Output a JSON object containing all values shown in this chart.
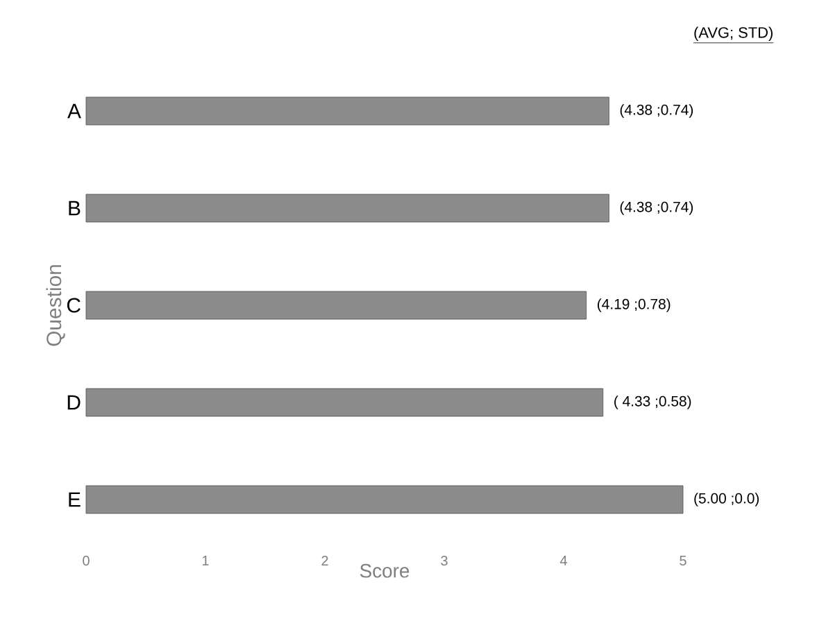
{
  "chart_data": {
    "type": "bar",
    "orientation": "horizontal",
    "xlabel": "Score",
    "ylabel": "Question",
    "categories": [
      "A",
      "B",
      "C",
      "D",
      "E"
    ],
    "values": [
      4.38,
      4.38,
      4.19,
      4.33,
      5.0
    ],
    "value_labels": [
      "(4.38 ;0.74)",
      "(4.38 ;0.74)",
      "(4.19 ;0.78)",
      "( 4.33 ;0.58)",
      "(5.00 ;0.0)"
    ],
    "color": "#8c8c8c",
    "xlim": [
      0,
      5
    ],
    "xticks": [
      0,
      1,
      2,
      3,
      4,
      5
    ],
    "annotations": [
      "(AVG; STD)"
    ]
  }
}
